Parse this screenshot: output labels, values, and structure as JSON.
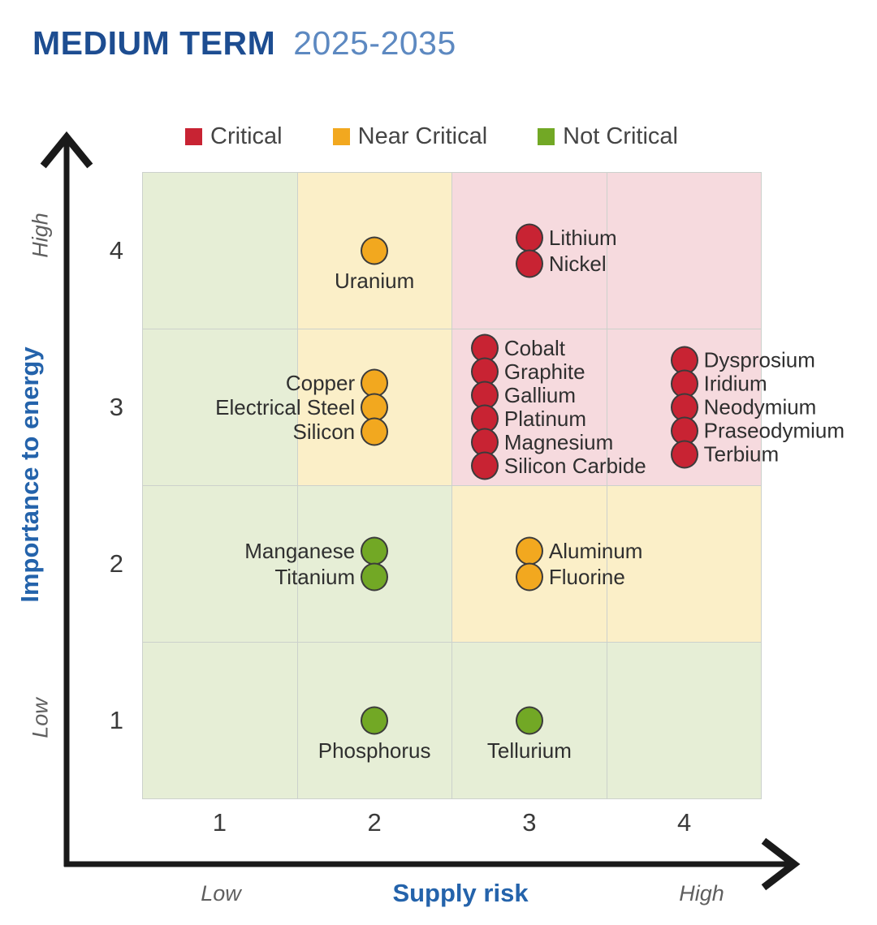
{
  "title": "MEDIUM TERM",
  "subtitle": "2025-2035",
  "chart_data": {
    "type": "scatter",
    "title": "MEDIUM TERM",
    "subtitle": "2025-2035",
    "xlabel": "Supply risk",
    "ylabel": "Importance to energy",
    "xlim": [
      0.5,
      4.5
    ],
    "ylim": [
      0.5,
      4.5
    ],
    "x_ticks": [
      "1",
      "2",
      "3",
      "4"
    ],
    "y_ticks": [
      "4",
      "3",
      "2",
      "1"
    ],
    "axis_end_labels": {
      "x_low": "Low",
      "x_high": "High",
      "y_low": "Low",
      "y_high": "High"
    },
    "legend": [
      {
        "label": "Critical",
        "status": "critical",
        "color": "#c82333"
      },
      {
        "label": "Near Critical",
        "status": "near_critical",
        "color": "#f2a81f"
      },
      {
        "label": "Not Critical",
        "status": "not_critical",
        "color": "#72a825"
      }
    ],
    "status_colors": {
      "critical": "#c82333",
      "near_critical": "#f2a81f",
      "not_critical": "#72a825"
    },
    "zone_palette": {
      "green": "#e6eed6",
      "yellow": "#fbefc8",
      "pink": "#f6dade"
    },
    "cell_colors_rows_top_to_bottom": [
      [
        "green",
        "yellow",
        "pink",
        "pink"
      ],
      [
        "green",
        "yellow",
        "pink",
        "pink"
      ],
      [
        "green",
        "green",
        "yellow",
        "yellow"
      ],
      [
        "green",
        "green",
        "green",
        "green"
      ]
    ],
    "groups": [
      {
        "items": [
          "Uranium"
        ],
        "status": "near_critical",
        "x": 2,
        "y": 4,
        "label_side": "below"
      },
      {
        "items": [
          "Lithium",
          "Nickel"
        ],
        "status": "critical",
        "x": 3,
        "y": 4,
        "label_side": "right"
      },
      {
        "items": [
          "Copper",
          "Electrical Steel",
          "Silicon"
        ],
        "status": "near_critical",
        "x": 2,
        "y": 3,
        "label_side": "left"
      },
      {
        "items": [
          "Cobalt",
          "Graphite",
          "Gallium",
          "Platinum",
          "Magnesium",
          "Silicon Carbide"
        ],
        "status": "critical",
        "x": 3,
        "y": 3,
        "label_side": "right",
        "dx": -55
      },
      {
        "items": [
          "Dysprosium",
          "Iridium",
          "Neodymium",
          "Praseodymium",
          "Terbium"
        ],
        "status": "critical",
        "x": 4,
        "y": 3,
        "label_side": "right"
      },
      {
        "items": [
          "Manganese",
          "Titanium"
        ],
        "status": "not_critical",
        "x": 2,
        "y": 2,
        "label_side": "left"
      },
      {
        "items": [
          "Aluminum",
          "Fluorine"
        ],
        "status": "near_critical",
        "x": 3,
        "y": 2,
        "label_side": "right"
      },
      {
        "items": [
          "Phosphorus"
        ],
        "status": "not_critical",
        "x": 2,
        "y": 1,
        "label_side": "below"
      },
      {
        "items": [
          "Tellurium"
        ],
        "status": "not_critical",
        "x": 3,
        "y": 1,
        "label_side": "below"
      }
    ]
  },
  "colors": {
    "title_main": "#1d4d91",
    "title_years": "#5d89c1",
    "axis_line": "#1a1a1a",
    "tick_text": "#3a3a3a",
    "axis_title_blue": "#2463ab",
    "end_label_gray": "#5f5f5f",
    "dot_stroke": "#3b3b3b",
    "gridline": "#ccd1cc",
    "label_text": "#2f2f2f"
  }
}
